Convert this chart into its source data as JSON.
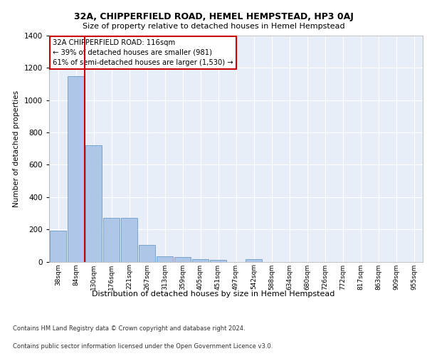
{
  "title1": "32A, CHIPPERFIELD ROAD, HEMEL HEMPSTEAD, HP3 0AJ",
  "title2": "Size of property relative to detached houses in Hemel Hempstead",
  "xlabel": "Distribution of detached houses by size in Hemel Hempstead",
  "ylabel": "Number of detached properties",
  "categories": [
    "38sqm",
    "84sqm",
    "130sqm",
    "176sqm",
    "221sqm",
    "267sqm",
    "313sqm",
    "359sqm",
    "405sqm",
    "451sqm",
    "497sqm",
    "542sqm",
    "588sqm",
    "634sqm",
    "680sqm",
    "726sqm",
    "772sqm",
    "817sqm",
    "863sqm",
    "909sqm",
    "955sqm"
  ],
  "values": [
    190,
    1150,
    720,
    270,
    270,
    105,
    35,
    28,
    14,
    13,
    0,
    14,
    0,
    0,
    0,
    0,
    0,
    0,
    0,
    0,
    0
  ],
  "bar_color": "#aec6e8",
  "bar_edge_color": "#5a8fc0",
  "vline_x": 1.5,
  "vline_color": "#cc0000",
  "ylim": [
    0,
    1400
  ],
  "yticks": [
    0,
    200,
    400,
    600,
    800,
    1000,
    1200,
    1400
  ],
  "annotation_lines": [
    "32A CHIPPERFIELD ROAD: 116sqm",
    "← 39% of detached houses are smaller (981)",
    "61% of semi-detached houses are larger (1,530) →"
  ],
  "annotation_box_color": "#cc0000",
  "footer1": "Contains HM Land Registry data © Crown copyright and database right 2024.",
  "footer2": "Contains public sector information licensed under the Open Government Licence v3.0.",
  "fig_facecolor": "#ffffff",
  "plot_bg_color": "#e8eef8"
}
